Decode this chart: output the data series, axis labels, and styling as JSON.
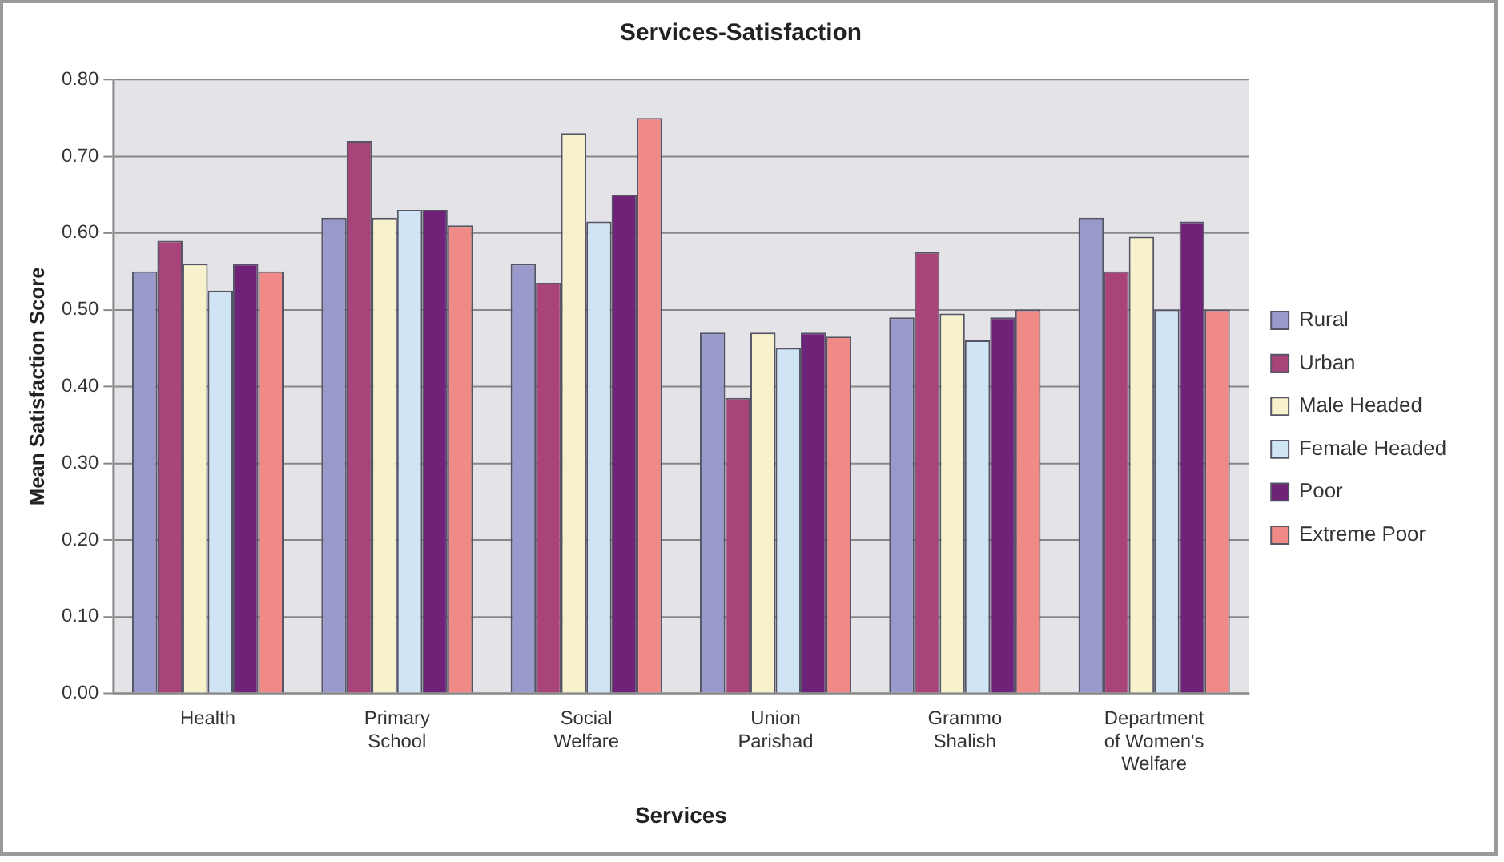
{
  "chart_data": {
    "type": "bar",
    "title": "Services-Satisfaction",
    "xlabel": "Services",
    "ylabel": "Mean Satisfaction Score",
    "categories": [
      [
        "Health"
      ],
      [
        "Primary",
        "School"
      ],
      [
        "Social",
        "Welfare"
      ],
      [
        "Union",
        "Parishad"
      ],
      [
        "Grammo",
        "Shalish"
      ],
      [
        "Department",
        "of Women's",
        "Welfare"
      ]
    ],
    "series": [
      {
        "name": "Rural",
        "color": "#9999cc",
        "values": [
          0.55,
          0.62,
          0.56,
          0.47,
          0.49,
          0.62
        ]
      },
      {
        "name": "Urban",
        "color": "#a8447a",
        "values": [
          0.59,
          0.72,
          0.535,
          0.385,
          0.575,
          0.55
        ]
      },
      {
        "name": "Male Headed",
        "color": "#f8f2cc",
        "values": [
          0.56,
          0.62,
          0.73,
          0.47,
          0.495,
          0.595
        ]
      },
      {
        "name": "Female Headed",
        "color": "#cfe4f4",
        "values": [
          0.525,
          0.63,
          0.615,
          0.45,
          0.46,
          0.5
        ]
      },
      {
        "name": "Poor",
        "color": "#6e2278",
        "values": [
          0.56,
          0.63,
          0.65,
          0.47,
          0.49,
          0.615
        ]
      },
      {
        "name": "Extreme Poor",
        "color": "#f08a86",
        "values": [
          0.55,
          0.61,
          0.75,
          0.465,
          0.5,
          0.5
        ]
      }
    ],
    "ylim": [
      0,
      0.8
    ],
    "yticks": [
      {
        "value": 0,
        "label": "0.00"
      },
      {
        "value": 0.1,
        "label": "0.10"
      },
      {
        "value": 0.2,
        "label": "0.20"
      },
      {
        "value": 0.3,
        "label": "0.30"
      },
      {
        "value": 0.4,
        "label": "0.40"
      },
      {
        "value": 0.5,
        "label": "0.50"
      },
      {
        "value": 0.6,
        "label": "0.60"
      },
      {
        "value": 0.7,
        "label": "0.70"
      },
      {
        "value": 0.8,
        "label": "0.80"
      }
    ],
    "grid": "y",
    "legend": "right"
  }
}
